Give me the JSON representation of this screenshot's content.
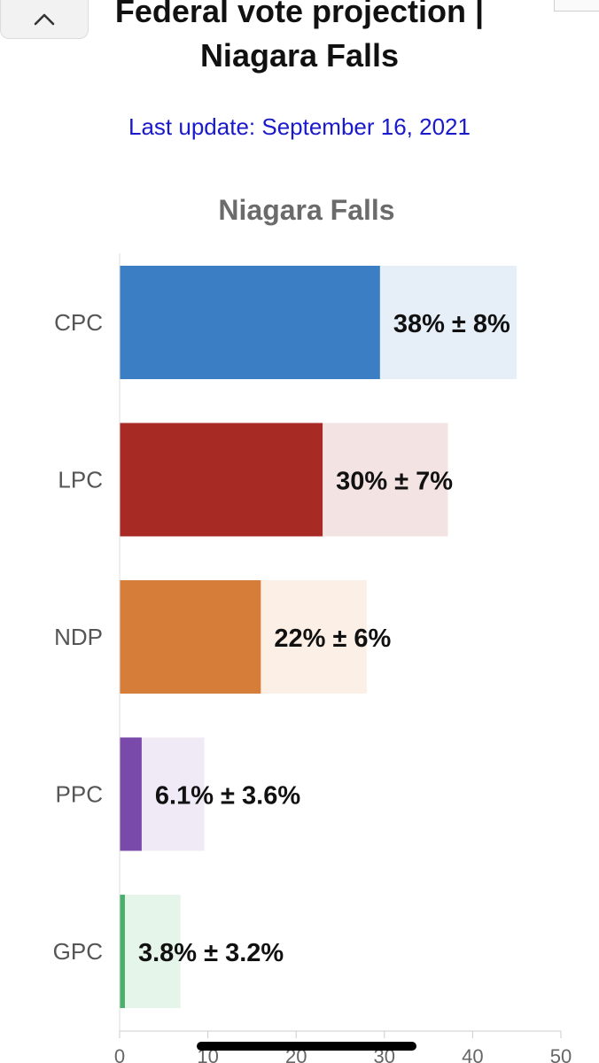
{
  "header": {
    "title_line1": "Federal vote projection |",
    "title_line2": "Niagara Falls",
    "last_update": "Last update: September 16, 2021"
  },
  "icons": {
    "back": "chevron-up-icon"
  },
  "chart_data": {
    "type": "bar",
    "orientation": "horizontal",
    "title": "Niagara Falls",
    "categories": [
      "CPC",
      "LPC",
      "NDP",
      "PPC",
      "GPC"
    ],
    "values": [
      29.5,
      23,
      16,
      2.5,
      0.6
    ],
    "range_high": [
      45,
      37.2,
      28,
      9.6,
      6.9
    ],
    "labels": [
      "38% ± 8%",
      "30% ± 7%",
      "22% ± 6%",
      "6.1% ± 3.6%",
      "3.8% ± 3.2%"
    ],
    "colors": [
      "#3b7ec3",
      "#a82a24",
      "#d67d39",
      "#7a4aab",
      "#49b06b"
    ],
    "band_colors": [
      "#e6eef8",
      "#f4e3e3",
      "#fbefe6",
      "#efeaf6",
      "#e6f5ea"
    ],
    "xlim": [
      0,
      50
    ],
    "xticks": [
      "0",
      "10",
      "20",
      "30",
      "40",
      "50"
    ],
    "grid": false,
    "legend": "none"
  }
}
